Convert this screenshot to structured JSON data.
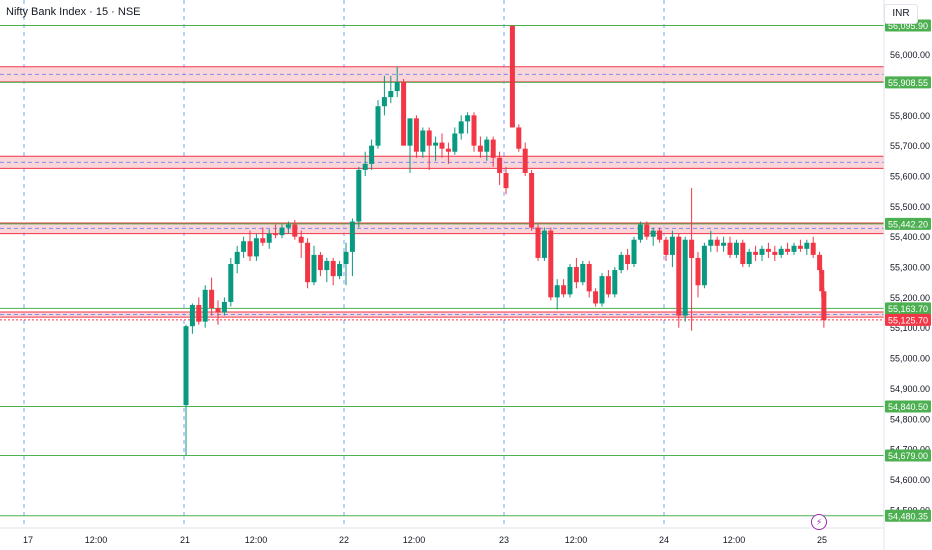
{
  "header": {
    "title": "Nifty Bank Index · 15 · NSE",
    "currency": "INR"
  },
  "icons": {
    "flash": "lightning-icon"
  },
  "colors": {
    "up": "#089981",
    "down": "#f23645",
    "level": "#4caf50",
    "zone_fill": "#f8c8ce",
    "zone_border": "#f23645",
    "grid_vertical": "#2962ff"
  },
  "chart_data": {
    "type": "candlestick",
    "ylim": [
      54440,
      56180
    ],
    "y_ticks": [
      {
        "value": 56000,
        "label": "56,000.00"
      },
      {
        "value": 55800,
        "label": "55,800.00"
      },
      {
        "value": 55700,
        "label": "55,700.00"
      },
      {
        "value": 55600,
        "label": "55,600.00"
      },
      {
        "value": 55500,
        "label": "55,500.00"
      },
      {
        "value": 55400,
        "label": "55,400.00"
      },
      {
        "value": 55300,
        "label": "55,300.00"
      },
      {
        "value": 55200,
        "label": "55,200.00"
      },
      {
        "value": 55100,
        "label": "55,100.00"
      },
      {
        "value": 55000,
        "label": "55,000.00"
      },
      {
        "value": 54900,
        "label": "54,900.00"
      },
      {
        "value": 54800,
        "label": "54,800.00"
      },
      {
        "value": 54700,
        "label": "54,700.00"
      },
      {
        "value": 54600,
        "label": "54,600.00"
      },
      {
        "value": 54500,
        "label": "54,500.00"
      }
    ],
    "x_ticks": [
      "17",
      "12:00",
      "21",
      "12:00",
      "22",
      "12:00",
      "23",
      "12:00",
      "24",
      "12:00",
      "25"
    ],
    "day_separators": [
      "17",
      "21",
      "22",
      "23",
      "24"
    ],
    "levels": [
      {
        "value": 56095.9,
        "label": "56,095.90",
        "style": "green"
      },
      {
        "value": 55908.55,
        "label": "55,908.55",
        "style": "green"
      },
      {
        "value": 55442.2,
        "label": "55,442.20",
        "style": "green"
      },
      {
        "value": 55163.7,
        "label": "55,163.70",
        "style": "green"
      },
      {
        "value": 55125.7,
        "label": "55,125.70",
        "style": "red"
      },
      {
        "value": 54840.5,
        "label": "54,840.50",
        "style": "green"
      },
      {
        "value": 54679.0,
        "label": "54,679.00",
        "style": "green"
      },
      {
        "value": 54480.35,
        "label": "54,480.35",
        "style": "green"
      }
    ],
    "zones": [
      {
        "top": 55960,
        "bottom": 55910
      },
      {
        "top": 55665,
        "bottom": 55625
      },
      {
        "top": 55445,
        "bottom": 55410
      },
      {
        "top": 55152,
        "bottom": 55135
      }
    ],
    "candles": [
      {
        "x": "21 09:15",
        "o": 54845,
        "h": 55110,
        "l": 54680,
        "c": 55105
      },
      {
        "x": "21 09:30",
        "o": 55105,
        "h": 55180,
        "l": 55080,
        "c": 55175
      },
      {
        "x": "21 09:45",
        "o": 55175,
        "h": 55200,
        "l": 55110,
        "c": 55120
      },
      {
        "x": "21 10:00",
        "o": 55120,
        "h": 55240,
        "l": 55100,
        "c": 55225
      },
      {
        "x": "21 10:15",
        "o": 55225,
        "h": 55265,
        "l": 55140,
        "c": 55165
      },
      {
        "x": "21 10:30",
        "o": 55165,
        "h": 55190,
        "l": 55110,
        "c": 55150
      },
      {
        "x": "21 10:45",
        "o": 55150,
        "h": 55200,
        "l": 55140,
        "c": 55185
      },
      {
        "x": "21 11:00",
        "o": 55185,
        "h": 55330,
        "l": 55170,
        "c": 55310
      },
      {
        "x": "21 11:15",
        "o": 55310,
        "h": 55370,
        "l": 55280,
        "c": 55350
      },
      {
        "x": "21 11:30",
        "o": 55350,
        "h": 55400,
        "l": 55330,
        "c": 55385
      },
      {
        "x": "21 11:45",
        "o": 55385,
        "h": 55420,
        "l": 55320,
        "c": 55335
      },
      {
        "x": "21 12:00",
        "o": 55335,
        "h": 55410,
        "l": 55320,
        "c": 55395
      },
      {
        "x": "21 12:15",
        "o": 55395,
        "h": 55430,
        "l": 55370,
        "c": 55380
      },
      {
        "x": "21 12:30",
        "o": 55380,
        "h": 55425,
        "l": 55360,
        "c": 55410
      },
      {
        "x": "21 12:45",
        "o": 55410,
        "h": 55440,
        "l": 55395,
        "c": 55405
      },
      {
        "x": "21 13:00",
        "o": 55405,
        "h": 55440,
        "l": 55395,
        "c": 55430
      },
      {
        "x": "21 13:15",
        "o": 55430,
        "h": 55450,
        "l": 55410,
        "c": 55440
      },
      {
        "x": "21 13:30",
        "o": 55440,
        "h": 55455,
        "l": 55390,
        "c": 55400
      },
      {
        "x": "21 13:45",
        "o": 55400,
        "h": 55420,
        "l": 55330,
        "c": 55380
      },
      {
        "x": "21 14:00",
        "o": 55380,
        "h": 55395,
        "l": 55230,
        "c": 55250
      },
      {
        "x": "21 14:15",
        "o": 55250,
        "h": 55370,
        "l": 55240,
        "c": 55340
      },
      {
        "x": "21 14:30",
        "o": 55340,
        "h": 55350,
        "l": 55270,
        "c": 55290
      },
      {
        "x": "21 14:45",
        "o": 55290,
        "h": 55330,
        "l": 55250,
        "c": 55320
      },
      {
        "x": "21 15:00",
        "o": 55320,
        "h": 55330,
        "l": 55240,
        "c": 55270
      },
      {
        "x": "21 15:15",
        "o": 55270,
        "h": 55320,
        "l": 55260,
        "c": 55310
      },
      {
        "x": "22 09:15",
        "o": 55310,
        "h": 55380,
        "l": 55240,
        "c": 55350
      },
      {
        "x": "22 09:30",
        "o": 55350,
        "h": 55460,
        "l": 55270,
        "c": 55450
      },
      {
        "x": "22 09:45",
        "o": 55450,
        "h": 55630,
        "l": 55430,
        "c": 55620
      },
      {
        "x": "22 10:00",
        "o": 55620,
        "h": 55680,
        "l": 55600,
        "c": 55640
      },
      {
        "x": "22 10:15",
        "o": 55640,
        "h": 55720,
        "l": 55620,
        "c": 55700
      },
      {
        "x": "22 10:30",
        "o": 55700,
        "h": 55850,
        "l": 55690,
        "c": 55830
      },
      {
        "x": "22 10:45",
        "o": 55830,
        "h": 55930,
        "l": 55800,
        "c": 55860
      },
      {
        "x": "22 11:00",
        "o": 55860,
        "h": 55930,
        "l": 55840,
        "c": 55880
      },
      {
        "x": "22 11:15",
        "o": 55880,
        "h": 55960,
        "l": 55860,
        "c": 55910
      },
      {
        "x": "22 11:30",
        "o": 55910,
        "h": 55920,
        "l": 55700,
        "c": 55700
      },
      {
        "x": "22 11:45",
        "o": 55700,
        "h": 55790,
        "l": 55610,
        "c": 55790
      },
      {
        "x": "22 12:00",
        "o": 55790,
        "h": 55800,
        "l": 55660,
        "c": 55680
      },
      {
        "x": "22 12:15",
        "o": 55680,
        "h": 55760,
        "l": 55660,
        "c": 55750
      },
      {
        "x": "22 12:30",
        "o": 55750,
        "h": 55760,
        "l": 55620,
        "c": 55700
      },
      {
        "x": "22 12:45",
        "o": 55700,
        "h": 55730,
        "l": 55650,
        "c": 55710
      },
      {
        "x": "22 13:00",
        "o": 55710,
        "h": 55740,
        "l": 55660,
        "c": 55690
      },
      {
        "x": "22 13:15",
        "o": 55690,
        "h": 55710,
        "l": 55640,
        "c": 55680
      },
      {
        "x": "22 13:30",
        "o": 55680,
        "h": 55760,
        "l": 55670,
        "c": 55740
      },
      {
        "x": "22 13:45",
        "o": 55740,
        "h": 55800,
        "l": 55720,
        "c": 55780
      },
      {
        "x": "22 14:00",
        "o": 55780,
        "h": 55810,
        "l": 55740,
        "c": 55800
      },
      {
        "x": "22 14:15",
        "o": 55800,
        "h": 55810,
        "l": 55680,
        "c": 55700
      },
      {
        "x": "22 14:30",
        "o": 55700,
        "h": 55730,
        "l": 55660,
        "c": 55680
      },
      {
        "x": "22 14:45",
        "o": 55680,
        "h": 55730,
        "l": 55650,
        "c": 55720
      },
      {
        "x": "22 15:00",
        "o": 55720,
        "h": 55730,
        "l": 55630,
        "c": 55660
      },
      {
        "x": "22 15:15",
        "o": 55660,
        "h": 55680,
        "l": 55570,
        "c": 55610
      },
      {
        "x": "23 09:15",
        "o": 55610,
        "h": 55630,
        "l": 55540,
        "c": 55560
      },
      {
        "x": "23 09:30",
        "o": 56095,
        "h": 56095,
        "l": 55760,
        "c": 55760
      },
      {
        "x": "23 09:45",
        "o": 55760,
        "h": 55770,
        "l": 55680,
        "c": 55690
      },
      {
        "x": "23 10:00",
        "o": 55690,
        "h": 55710,
        "l": 55600,
        "c": 55610
      },
      {
        "x": "23 10:15",
        "o": 55610,
        "h": 55620,
        "l": 55420,
        "c": 55430
      },
      {
        "x": "23 10:30",
        "o": 55430,
        "h": 55440,
        "l": 55320,
        "c": 55330
      },
      {
        "x": "23 10:45",
        "o": 55330,
        "h": 55430,
        "l": 55320,
        "c": 55420
      },
      {
        "x": "23 11:00",
        "o": 55420,
        "h": 55430,
        "l": 55190,
        "c": 55200
      },
      {
        "x": "23 11:15",
        "o": 55200,
        "h": 55260,
        "l": 55160,
        "c": 55240
      },
      {
        "x": "23 11:30",
        "o": 55240,
        "h": 55260,
        "l": 55200,
        "c": 55210
      },
      {
        "x": "23 11:45",
        "o": 55210,
        "h": 55310,
        "l": 55200,
        "c": 55300
      },
      {
        "x": "23 12:00",
        "o": 55300,
        "h": 55330,
        "l": 55230,
        "c": 55250
      },
      {
        "x": "23 12:15",
        "o": 55250,
        "h": 55320,
        "l": 55240,
        "c": 55310
      },
      {
        "x": "23 12:30",
        "o": 55310,
        "h": 55320,
        "l": 55200,
        "c": 55220
      },
      {
        "x": "23 12:45",
        "o": 55220,
        "h": 55230,
        "l": 55170,
        "c": 55180
      },
      {
        "x": "23 13:00",
        "o": 55180,
        "h": 55280,
        "l": 55170,
        "c": 55270
      },
      {
        "x": "23 13:15",
        "o": 55270,
        "h": 55290,
        "l": 55200,
        "c": 55210
      },
      {
        "x": "23 13:30",
        "o": 55210,
        "h": 55300,
        "l": 55200,
        "c": 55290
      },
      {
        "x": "23 13:45",
        "o": 55290,
        "h": 55350,
        "l": 55280,
        "c": 55340
      },
      {
        "x": "23 14:00",
        "o": 55340,
        "h": 55360,
        "l": 55290,
        "c": 55310
      },
      {
        "x": "23 14:15",
        "o": 55310,
        "h": 55400,
        "l": 55300,
        "c": 55390
      },
      {
        "x": "23 14:30",
        "o": 55390,
        "h": 55450,
        "l": 55380,
        "c": 55440
      },
      {
        "x": "23 14:45",
        "o": 55440,
        "h": 55450,
        "l": 55390,
        "c": 55400
      },
      {
        "x": "23 15:00",
        "o": 55400,
        "h": 55430,
        "l": 55370,
        "c": 55420
      },
      {
        "x": "23 15:15",
        "o": 55420,
        "h": 55430,
        "l": 55380,
        "c": 55390
      },
      {
        "x": "24 09:15",
        "o": 55390,
        "h": 55400,
        "l": 55320,
        "c": 55340
      },
      {
        "x": "24 09:30",
        "o": 55340,
        "h": 55420,
        "l": 55300,
        "c": 55400
      },
      {
        "x": "24 09:45",
        "o": 55400,
        "h": 55410,
        "l": 55100,
        "c": 55140
      },
      {
        "x": "24 10:00",
        "o": 55140,
        "h": 55400,
        "l": 55120,
        "c": 55390
      },
      {
        "x": "24 10:15",
        "o": 55390,
        "h": 55560,
        "l": 55090,
        "c": 55330
      },
      {
        "x": "24 10:30",
        "o": 55330,
        "h": 55350,
        "l": 55200,
        "c": 55240
      },
      {
        "x": "24 10:45",
        "o": 55240,
        "h": 55380,
        "l": 55230,
        "c": 55370
      },
      {
        "x": "24 11:00",
        "o": 55370,
        "h": 55420,
        "l": 55350,
        "c": 55390
      },
      {
        "x": "24 11:15",
        "o": 55390,
        "h": 55400,
        "l": 55350,
        "c": 55370
      },
      {
        "x": "24 11:30",
        "o": 55370,
        "h": 55400,
        "l": 55350,
        "c": 55380
      },
      {
        "x": "24 11:45",
        "o": 55380,
        "h": 55400,
        "l": 55330,
        "c": 55340
      },
      {
        "x": "24 12:00",
        "o": 55340,
        "h": 55390,
        "l": 55330,
        "c": 55380
      },
      {
        "x": "24 12:15",
        "o": 55380,
        "h": 55390,
        "l": 55300,
        "c": 55310
      },
      {
        "x": "24 12:30",
        "o": 55310,
        "h": 55360,
        "l": 55300,
        "c": 55350
      },
      {
        "x": "24 12:45",
        "o": 55350,
        "h": 55370,
        "l": 55320,
        "c": 55340
      },
      {
        "x": "24 13:00",
        "o": 55340,
        "h": 55370,
        "l": 55320,
        "c": 55360
      },
      {
        "x": "24 13:15",
        "o": 55360,
        "h": 55380,
        "l": 55330,
        "c": 55350
      },
      {
        "x": "24 13:30",
        "o": 55350,
        "h": 55370,
        "l": 55320,
        "c": 55340
      },
      {
        "x": "24 13:45",
        "o": 55340,
        "h": 55370,
        "l": 55330,
        "c": 55360
      },
      {
        "x": "24 14:00",
        "o": 55360,
        "h": 55380,
        "l": 55340,
        "c": 55350
      },
      {
        "x": "24 14:15",
        "o": 55350,
        "h": 55380,
        "l": 55340,
        "c": 55370
      },
      {
        "x": "24 14:30",
        "o": 55370,
        "h": 55390,
        "l": 55350,
        "c": 55360
      },
      {
        "x": "24 14:45",
        "o": 55360,
        "h": 55390,
        "l": 55340,
        "c": 55380
      },
      {
        "x": "24 15:00",
        "o": 55380,
        "h": 55400,
        "l": 55330,
        "c": 55340
      },
      {
        "x": "24 15:15",
        "o": 55340,
        "h": 55350,
        "l": 55280,
        "c": 55290
      },
      {
        "x": "24 15:20",
        "o": 55290,
        "h": 55300,
        "l": 55200,
        "c": 55220
      },
      {
        "x": "24 15:25",
        "o": 55220,
        "h": 55230,
        "l": 55100,
        "c": 55125
      }
    ]
  }
}
